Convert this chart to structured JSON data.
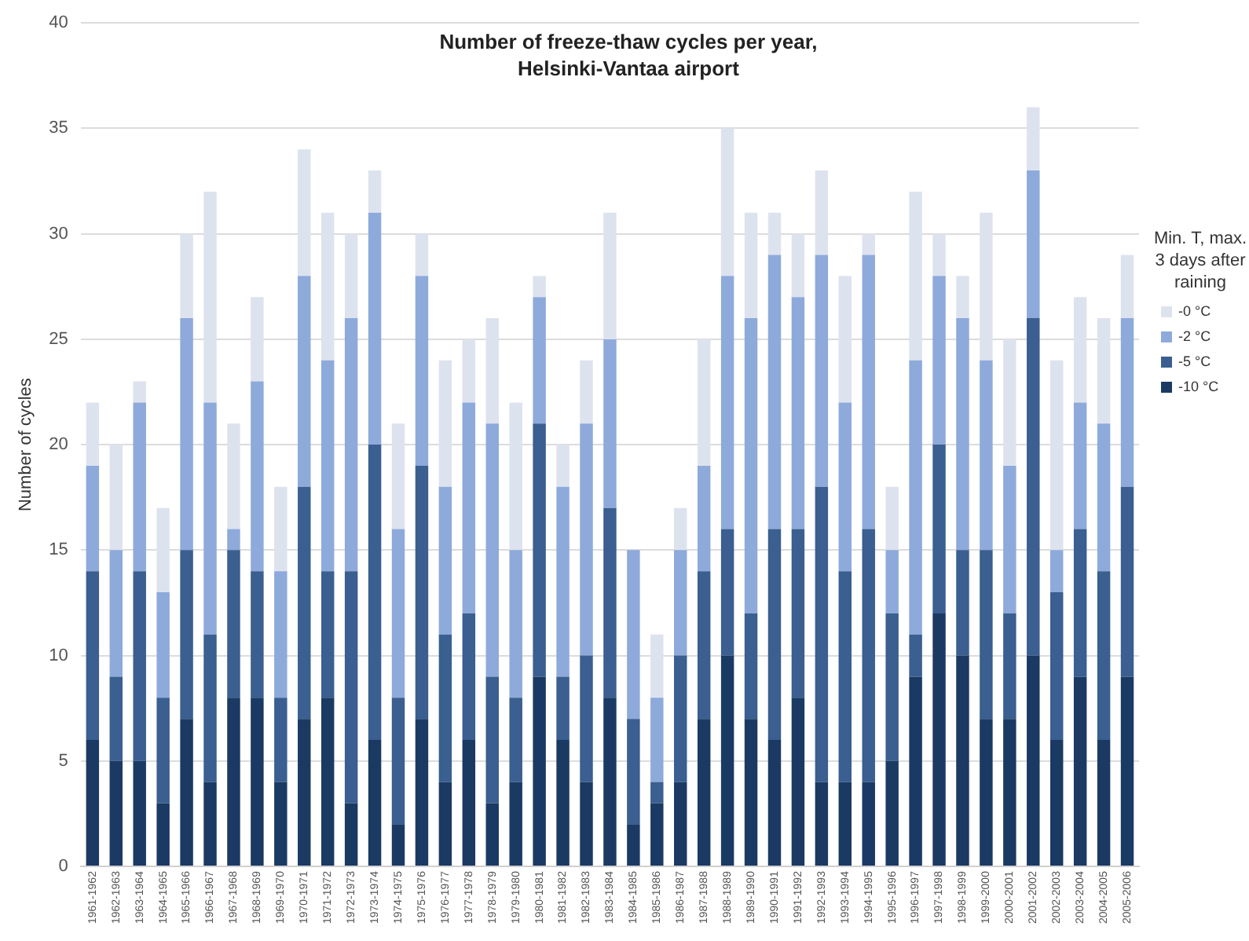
{
  "chart_data": {
    "type": "bar",
    "title": "Number of freeze-thaw cycles per year, Helsinki-Vantaa airport",
    "ylabel": "Number of cycles",
    "legend_title": "Min. T, max. 3 days after raining",
    "categories": [
      "1961-1962",
      "1962-1963",
      "1963-1964",
      "1964-1965",
      "1965-1966",
      "1966-1967",
      "1967-1968",
      "1968-1969",
      "1969-1970",
      "1970-1971",
      "1971-1972",
      "1972-1973",
      "1973-1974",
      "1974-1975",
      "1975-1976",
      "1976-1977",
      "1977-1978",
      "1978-1979",
      "1979-1980",
      "1980-1981",
      "1981-1982",
      "1982-1983",
      "1983-1984",
      "1984-1985",
      "1985-1986",
      "1986-1987",
      "1987-1988",
      "1988-1989",
      "1989-1990",
      "1990-1991",
      "1991-1992",
      "1992-1993",
      "1993-1994",
      "1994-1995",
      "1995-1996",
      "1996-1997",
      "1997-1998",
      "1998-1999",
      "1999-2000",
      "2000-2001",
      "2001-2002",
      "2002-2003",
      "2003-2004",
      "2004-2005",
      "2005-2006"
    ],
    "series": [
      {
        "name": "-10 °C",
        "color": "#1b3a63",
        "values": [
          6,
          5,
          5,
          3,
          7,
          4,
          8,
          8,
          4,
          7,
          8,
          3,
          6,
          2,
          7,
          4,
          6,
          3,
          4,
          9,
          6,
          4,
          8,
          2,
          3,
          4,
          7,
          10,
          7,
          6,
          8,
          4,
          4,
          4,
          5,
          9,
          12,
          10,
          7,
          7,
          10,
          6,
          9,
          6,
          9
        ]
      },
      {
        "name": "-5 °C",
        "color": "#3a5f90",
        "values": [
          8,
          4,
          9,
          5,
          8,
          7,
          7,
          6,
          4,
          11,
          6,
          11,
          14,
          6,
          12,
          7,
          6,
          6,
          4,
          12,
          3,
          6,
          9,
          5,
          1,
          6,
          7,
          6,
          5,
          10,
          8,
          14,
          10,
          12,
          7,
          2,
          8,
          5,
          8,
          5,
          16,
          7,
          7,
          8,
          9
        ]
      },
      {
        "name": "-2 °C",
        "color": "#8eaadb",
        "values": [
          5,
          6,
          8,
          5,
          11,
          11,
          1,
          9,
          6,
          10,
          10,
          12,
          11,
          8,
          9,
          7,
          10,
          12,
          7,
          6,
          9,
          11,
          8,
          8,
          4,
          5,
          5,
          12,
          14,
          13,
          11,
          11,
          8,
          13,
          3,
          13,
          8,
          11,
          9,
          7,
          7,
          2,
          6,
          7,
          8
        ]
      },
      {
        "name": "-0 °C",
        "color": "#dde3ee",
        "values": [
          3,
          5,
          1,
          4,
          4,
          10,
          5,
          4,
          4,
          6,
          7,
          4,
          2,
          5,
          2,
          6,
          3,
          5,
          7,
          1,
          2,
          3,
          6,
          0,
          3,
          2,
          6,
          7,
          5,
          2,
          3,
          4,
          6,
          1,
          3,
          8,
          2,
          2,
          7,
          6,
          3,
          9,
          5,
          5,
          3
        ]
      }
    ],
    "stacked": true,
    "ylim": [
      0,
      40
    ],
    "yticks": [
      0,
      5,
      10,
      15,
      20,
      25,
      30,
      35,
      40
    ],
    "grid": "y",
    "legend": "right"
  }
}
